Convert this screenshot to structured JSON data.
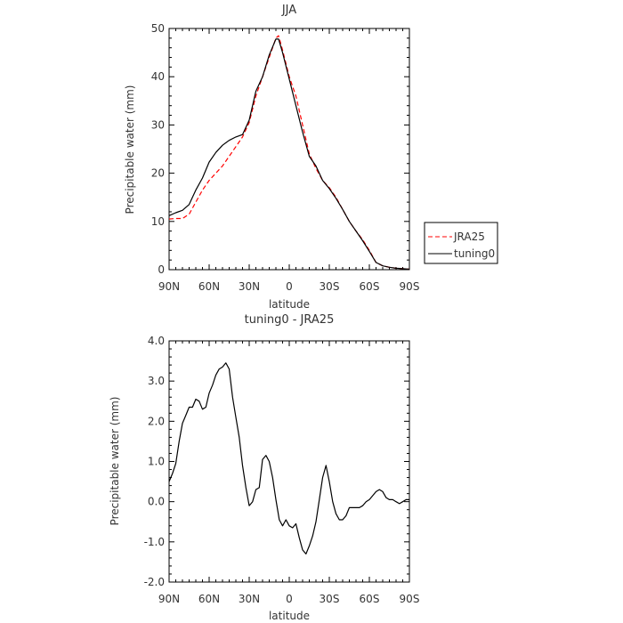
{
  "chart_data": [
    {
      "type": "line",
      "title": "JJA",
      "xlabel": "latitude",
      "ylabel": "Precipitable water (mm)",
      "xlim": [
        90,
        -90
      ],
      "ylim": [
        0,
        50
      ],
      "x_ticks": [
        90,
        60,
        30,
        0,
        -30,
        -60,
        -90
      ],
      "x_tick_labels": [
        "90N",
        "60N",
        "30N",
        "0",
        "30S",
        "60S",
        "90S"
      ],
      "y_ticks": [
        0,
        10,
        20,
        30,
        40,
        50
      ],
      "y_tick_labels": [
        "0",
        "10",
        "20",
        "30",
        "40",
        "50"
      ],
      "legend": {
        "placement": "outside-right",
        "entries": [
          "JRA25",
          "tuning0"
        ]
      },
      "series": [
        {
          "name": "JRA25",
          "color": "#ff0000",
          "dash": "dashed",
          "x": [
            90,
            85,
            80,
            75,
            70,
            65,
            60,
            55,
            50,
            45,
            40,
            35,
            30,
            25,
            20,
            15,
            10,
            8,
            5,
            0,
            -5,
            -10,
            -15,
            -20,
            -25,
            -30,
            -35,
            -40,
            -45,
            -50,
            -55,
            -60,
            -65,
            -70,
            -75,
            -80,
            -85,
            -90
          ],
          "y": [
            10.5,
            10.6,
            10.6,
            11.5,
            14,
            16.5,
            18.5,
            20,
            21.5,
            23.5,
            25.5,
            27.5,
            30.5,
            36,
            40,
            44,
            48,
            48.5,
            45.5,
            40,
            36,
            30,
            24,
            21,
            18.5,
            17,
            15,
            12.5,
            10,
            8,
            6.2,
            4,
            1.5,
            0.8,
            0.5,
            0.3,
            0.2,
            0.1
          ]
        },
        {
          "name": "tuning0",
          "color": "#000000",
          "dash": "solid",
          "x": [
            90,
            85,
            80,
            75,
            70,
            65,
            60,
            55,
            50,
            45,
            40,
            35,
            30,
            25,
            20,
            15,
            10,
            8,
            5,
            0,
            -5,
            -10,
            -15,
            -20,
            -25,
            -30,
            -35,
            -40,
            -45,
            -50,
            -55,
            -60,
            -65,
            -70,
            -75,
            -80,
            -85,
            -90
          ],
          "y": [
            11.2,
            11.8,
            12.3,
            13.5,
            16.5,
            19,
            22.3,
            24.3,
            25.8,
            26.8,
            27.5,
            28,
            31,
            37,
            40,
            44.5,
            47.8,
            47.8,
            45,
            39.5,
            34,
            28.5,
            23.5,
            21.5,
            18.5,
            16.8,
            14.8,
            12.5,
            10,
            8,
            6,
            3.8,
            1.5,
            0.8,
            0.5,
            0.3,
            0.2,
            0.1
          ]
        }
      ]
    },
    {
      "type": "line",
      "title": "tuning0 - JRA25",
      "xlabel": "latitude",
      "ylabel": "Precipitable water (mm)",
      "xlim": [
        90,
        -90
      ],
      "ylim": [
        -2,
        4
      ],
      "x_ticks": [
        90,
        60,
        30,
        0,
        -30,
        -60,
        -90
      ],
      "x_tick_labels": [
        "90N",
        "60N",
        "30N",
        "0",
        "30S",
        "60S",
        "90S"
      ],
      "y_ticks": [
        -2,
        -1,
        0,
        1,
        2,
        3,
        4
      ],
      "y_tick_labels": [
        "-2.0",
        "-1.0",
        "0.0",
        "1.0",
        "2.0",
        "3.0",
        "4.0"
      ],
      "series": [
        {
          "color": "#000000",
          "dash": "solid",
          "x": [
            90,
            87.5,
            85,
            82.5,
            80,
            77.5,
            75,
            72.5,
            70,
            67.5,
            65,
            62.5,
            60,
            57.5,
            55,
            52.5,
            50,
            47.5,
            45,
            42.5,
            40,
            37.5,
            35,
            32.5,
            30,
            27.5,
            25,
            22.5,
            20,
            17.5,
            15,
            12.5,
            10,
            7.5,
            5,
            2.5,
            0,
            -2.5,
            -5,
            -7.5,
            -10,
            -12.5,
            -15,
            -17.5,
            -20,
            -22.5,
            -25,
            -27.5,
            -30,
            -32.5,
            -35,
            -37.5,
            -40,
            -42.5,
            -45,
            -47.5,
            -50,
            -52.5,
            -55,
            -57.5,
            -60,
            -62.5,
            -65,
            -67.5,
            -70,
            -72.5,
            -75,
            -77.5,
            -80,
            -82.5,
            -85,
            -87.5,
            -90
          ],
          "y": [
            0.5,
            0.7,
            0.95,
            1.5,
            1.95,
            2.15,
            2.35,
            2.35,
            2.55,
            2.5,
            2.3,
            2.35,
            2.7,
            2.9,
            3.15,
            3.3,
            3.35,
            3.45,
            3.3,
            2.6,
            2.1,
            1.6,
            0.9,
            0.35,
            -0.1,
            0.0,
            0.3,
            0.35,
            1.05,
            1.15,
            1.0,
            0.6,
            0.05,
            -0.45,
            -0.6,
            -0.45,
            -0.6,
            -0.65,
            -0.55,
            -0.9,
            -1.2,
            -1.3,
            -1.1,
            -0.85,
            -0.5,
            0.05,
            0.6,
            0.9,
            0.5,
            0.0,
            -0.3,
            -0.45,
            -0.45,
            -0.35,
            -0.15,
            -0.15,
            -0.15,
            -0.15,
            -0.1,
            0.0,
            0.05,
            0.15,
            0.25,
            0.3,
            0.25,
            0.1,
            0.05,
            0.05,
            0.0,
            -0.05,
            0.0,
            0.05,
            0.05
          ]
        }
      ]
    }
  ]
}
